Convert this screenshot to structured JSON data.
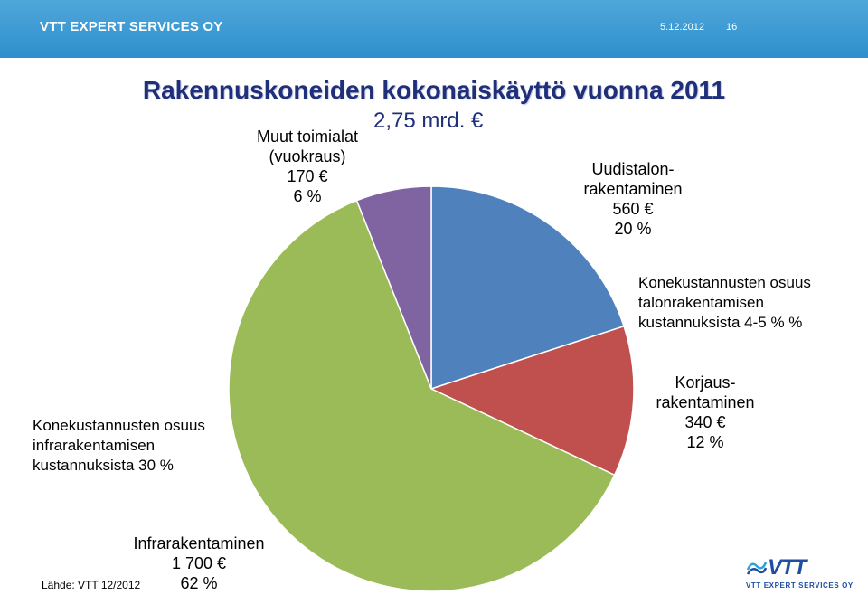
{
  "header": {
    "company": "VTT EXPERT SERVICES OY",
    "date": "5.12.2012",
    "page_number": "16"
  },
  "chart_data": {
    "type": "pie",
    "title": "Rakennuskoneiden kokonaiskäyttö vuonna 2011",
    "subtitle": "2,75 mrd. €",
    "slices": [
      {
        "name_lines": [
          "Uudistalon-",
          "rakentaminen"
        ],
        "amount": "560 €",
        "percent_text": "20 %",
        "value": 20,
        "color": "#4f81bd"
      },
      {
        "name_lines": [
          "Korjaus-",
          "rakentaminen"
        ],
        "amount": "340 €",
        "percent_text": "12 %",
        "value": 12,
        "color": "#c0504d"
      },
      {
        "name_lines": [
          "Infrarakentaminen"
        ],
        "amount": "1 700 €",
        "percent_text": "62 %",
        "value": 62,
        "color": "#9bbb59"
      },
      {
        "name_lines": [
          "Muut toimialat",
          "(vuokraus)"
        ],
        "amount": "170 €",
        "percent_text": "6 %",
        "value": 6,
        "color": "#8064a2"
      }
    ],
    "start_angle_deg": 0,
    "direction": "clockwise"
  },
  "notes": {
    "talo": [
      "Konekustannusten osuus",
      "talonrakentamisen",
      "kustannuksista 4-5 % %"
    ],
    "infra": [
      "Konekustannusten osuus",
      "infrarakentamisen",
      "kustannuksista 30 %"
    ]
  },
  "source": "Lähde: VTT 12/2012",
  "logo": {
    "text": "VTT",
    "subtext": "VTT EXPERT SERVICES OY"
  }
}
